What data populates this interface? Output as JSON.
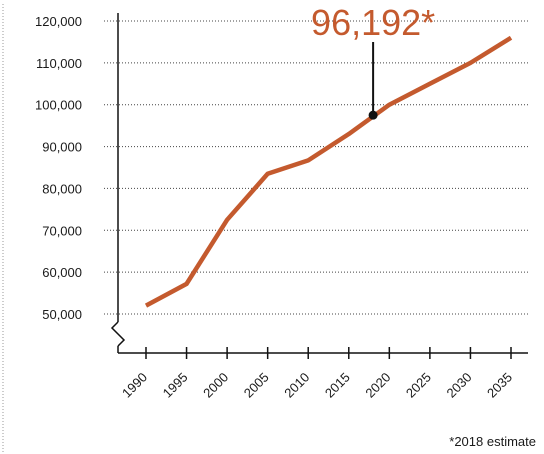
{
  "colors": {
    "line": "#c45a2e",
    "axis": "#111111",
    "grid": "#444444",
    "marker": "#111111",
    "callout_text": "#c45a2e",
    "frame": "#999999"
  },
  "chart_data": {
    "type": "line",
    "x": [
      1990,
      1995,
      2000,
      2005,
      2010,
      2015,
      2020,
      2025,
      2030,
      2035
    ],
    "series": [
      {
        "values": [
          52000,
          57200,
          72500,
          83500,
          86700,
          93000,
          100000,
          105000,
          110000,
          116000
        ]
      }
    ],
    "y_ticks": [
      50000,
      60000,
      70000,
      80000,
      90000,
      100000,
      110000,
      120000
    ],
    "y_tick_labels": [
      "50,000",
      "60,000",
      "70,000",
      "80,000",
      "90,000",
      "100,000",
      "110,000",
      "120,000"
    ],
    "x_tick_labels": [
      "1990",
      "1995",
      "2000",
      "2005",
      "2010",
      "2015",
      "2020",
      "2025",
      "2030",
      "2035"
    ],
    "xlim": [
      1985,
      2035
    ],
    "ylim": [
      50000,
      120000
    ],
    "axis_break": true,
    "grid": "horizontal dotted",
    "annotation": {
      "x": 2018,
      "y": 97500,
      "label": "96,192*"
    },
    "footnote": "*2018 estimate"
  }
}
